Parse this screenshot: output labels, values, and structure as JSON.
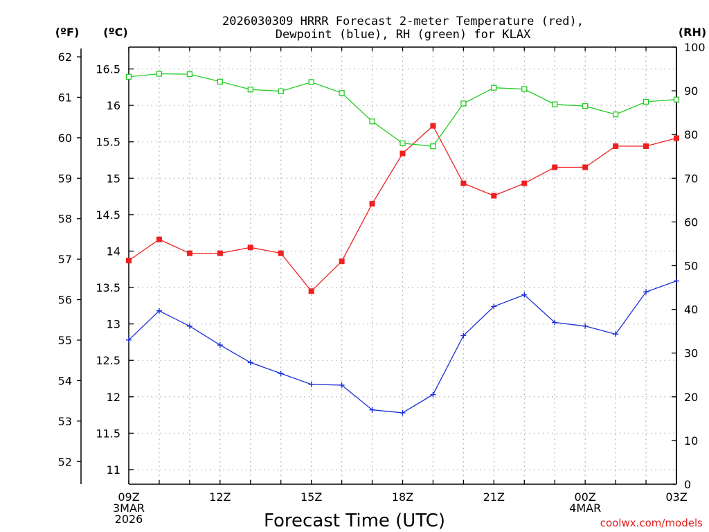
{
  "title_line1": "2026030309 HRRR Forecast 2-meter Temperature (red),",
  "title_line2": "Dewpoint (blue), RH (green) for KLAX",
  "left_unit_f": "(ºF)",
  "left_unit_c": "(ºC)",
  "right_unit": "(RH)",
  "xlabel": "Forecast Time (UTC)",
  "watermark": "coolwx.com/models",
  "colors": {
    "temperature": "#ee2020",
    "dewpoint": "#1a2fd8",
    "rh": "#22cc22",
    "grid": "#b0b0b0",
    "axis": "#000000"
  },
  "chart_data": {
    "type": "line",
    "x": [
      "09Z",
      "10Z",
      "11Z",
      "12Z",
      "13Z",
      "14Z",
      "15Z",
      "16Z",
      "17Z",
      "18Z",
      "19Z",
      "20Z",
      "21Z",
      "22Z",
      "23Z",
      "00Z",
      "01Z",
      "02Z",
      "03Z"
    ],
    "x_ticks": [
      {
        "index": 0,
        "lines": [
          "09Z",
          "3MAR",
          "2026"
        ]
      },
      {
        "index": 3,
        "lines": [
          "12Z"
        ]
      },
      {
        "index": 6,
        "lines": [
          "15Z"
        ]
      },
      {
        "index": 9,
        "lines": [
          "18Z"
        ]
      },
      {
        "index": 12,
        "lines": [
          "21Z"
        ]
      },
      {
        "index": 15,
        "lines": [
          "00Z",
          "4MAR"
        ]
      },
      {
        "index": 18,
        "lines": [
          "03Z"
        ]
      }
    ],
    "y_celsius": {
      "range": [
        10.8,
        16.8
      ],
      "ticks": [
        "11",
        "11.5",
        "12",
        "12.5",
        "13",
        "13.5",
        "14",
        "14.5",
        "15",
        "15.5",
        "16",
        "16.5"
      ]
    },
    "y_fahrenheit": {
      "ticks": [
        "52",
        "53",
        "54",
        "55",
        "56",
        "57",
        "58",
        "59",
        "60",
        "61",
        "62"
      ]
    },
    "y_rh": {
      "range": [
        0,
        100
      ],
      "ticks": [
        "0",
        "10",
        "20",
        "30",
        "40",
        "50",
        "60",
        "70",
        "80",
        "90",
        "100"
      ]
    },
    "series": [
      {
        "name": "Temperature",
        "axis": "celsius",
        "marker": "filled-square",
        "values": [
          13.87,
          14.16,
          13.97,
          13.97,
          14.05,
          13.97,
          13.45,
          13.86,
          14.65,
          15.34,
          15.72,
          14.93,
          14.76,
          14.93,
          15.15,
          15.15,
          15.44,
          15.44,
          15.55
        ]
      },
      {
        "name": "Dewpoint",
        "axis": "celsius",
        "marker": "plus",
        "values": [
          12.78,
          13.18,
          12.97,
          12.71,
          12.47,
          12.32,
          12.17,
          12.16,
          11.82,
          11.78,
          12.03,
          12.84,
          13.24,
          13.4,
          13.02,
          12.97,
          12.86,
          13.44,
          13.59
        ]
      },
      {
        "name": "RH",
        "axis": "rh",
        "marker": "open-square",
        "values": [
          93.2,
          93.9,
          93.8,
          92.1,
          90.3,
          89.9,
          92.0,
          89.5,
          83.0,
          78.0,
          77.3,
          87.1,
          90.7,
          90.4,
          86.9,
          86.5,
          84.6,
          87.5,
          88.0
        ]
      }
    ]
  }
}
